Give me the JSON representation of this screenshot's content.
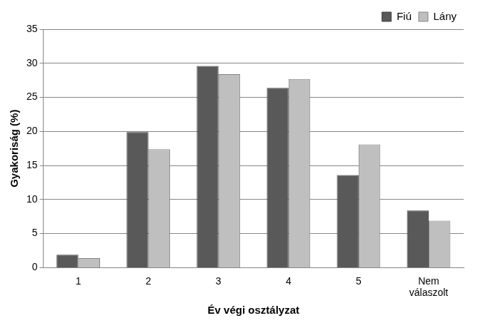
{
  "chart_data": {
    "type": "bar",
    "categories": [
      "1",
      "2",
      "3",
      "4",
      "5",
      "Nem válaszolt"
    ],
    "series": [
      {
        "name": "Fiú",
        "color": "#595959",
        "values": [
          1.9,
          19.9,
          29.6,
          26.4,
          13.6,
          8.4
        ]
      },
      {
        "name": "Lány",
        "color": "#bfbfbf",
        "values": [
          1.4,
          17.4,
          28.4,
          27.7,
          18.1,
          6.9
        ]
      }
    ],
    "x_label": "Év végi osztályzat",
    "y_label": "Gyakoriság (%)",
    "ylim": [
      0,
      35
    ],
    "yticks": [
      0,
      5,
      10,
      15,
      20,
      25,
      30,
      35
    ],
    "grid": true,
    "legend": "northeast"
  }
}
